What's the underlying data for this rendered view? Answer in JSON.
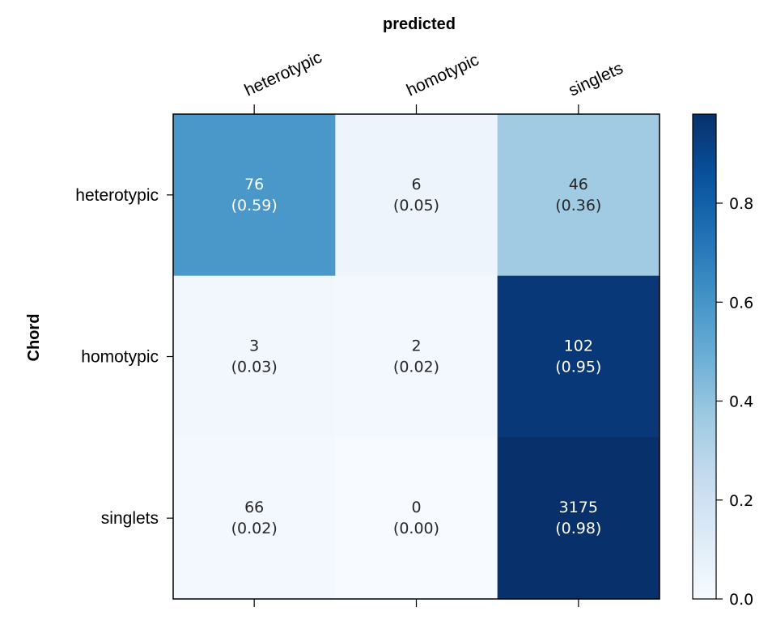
{
  "chart_data": {
    "type": "heatmap",
    "title": "",
    "xlabel": "predicted",
    "ylabel": "Chord",
    "x_categories": [
      "heterotypic",
      "homotypic",
      "singlets"
    ],
    "y_categories": [
      "heterotypic",
      "homotypic",
      "singlets"
    ],
    "counts": [
      [
        76,
        6,
        46
      ],
      [
        3,
        2,
        102
      ],
      [
        66,
        0,
        3175
      ]
    ],
    "normalized": [
      [
        0.59,
        0.05,
        0.36
      ],
      [
        0.03,
        0.02,
        0.95
      ],
      [
        0.02,
        0.0,
        0.98
      ]
    ],
    "cell_labels": [
      [
        [
          "76",
          "(0.59)"
        ],
        [
          "6",
          "(0.05)"
        ],
        [
          "46",
          "(0.36)"
        ]
      ],
      [
        [
          "3",
          "(0.03)"
        ],
        [
          "2",
          "(0.02)"
        ],
        [
          "102",
          "(0.95)"
        ]
      ],
      [
        [
          "66",
          "(0.02)"
        ],
        [
          "0",
          "(0.00)"
        ],
        [
          "3175",
          "(0.98)"
        ]
      ]
    ],
    "colormap": "Blues",
    "colorbar": {
      "min": 0.0,
      "max": 0.98,
      "ticks": [
        0.0,
        0.2,
        0.4,
        0.6,
        0.8
      ],
      "tick_labels": [
        "0.0",
        "0.2",
        "0.4",
        "0.6",
        "0.8"
      ]
    },
    "grid": false,
    "x_tick_position": "top"
  },
  "colors": {
    "blues_low": "#f7fbff",
    "blues_high": "#08306b",
    "text_dark": "#262626",
    "text_light": "#ffffff"
  }
}
